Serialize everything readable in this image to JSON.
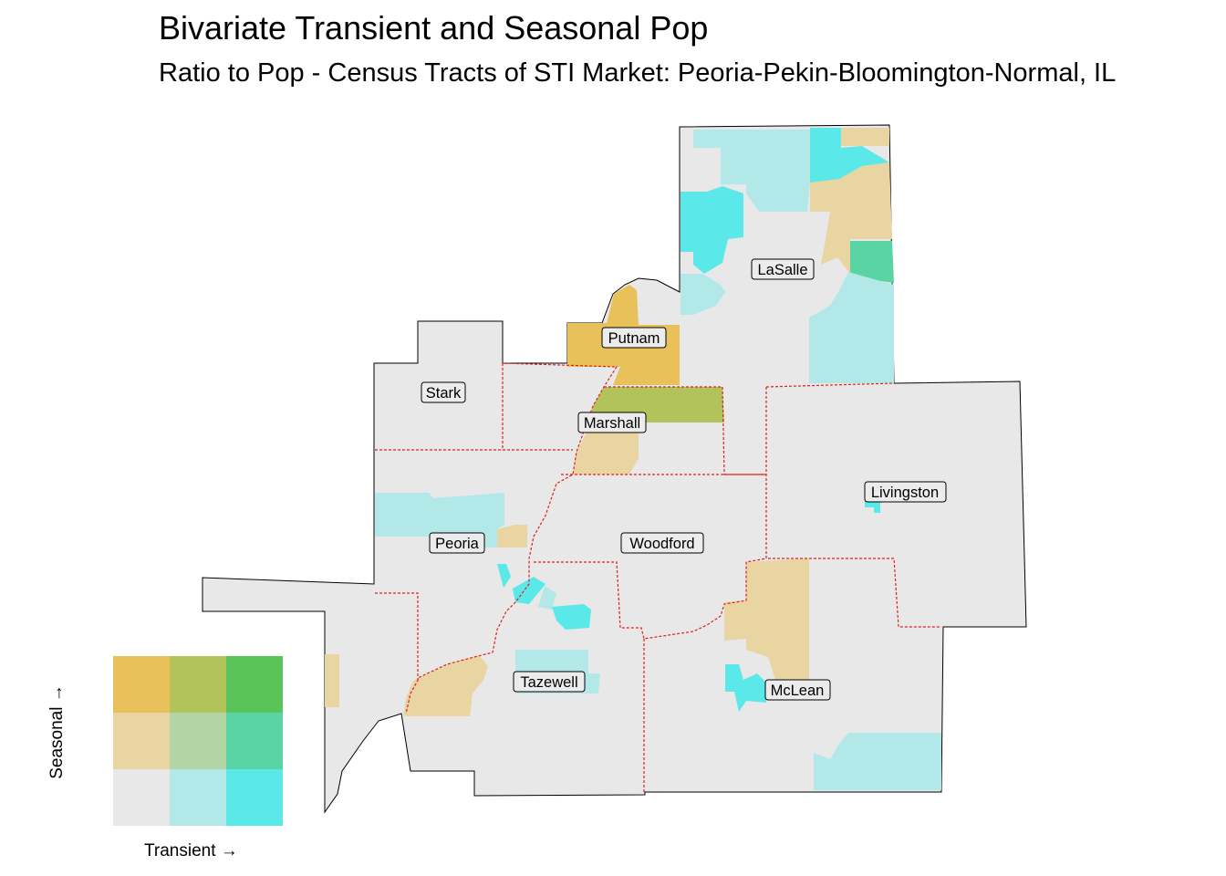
{
  "title": "Bivariate Transient and Seasonal Pop",
  "subtitle": "Ratio to Pop - Census Tracts of STI Market: Peoria-Pekin-Bloomington-Normal, IL",
  "counties": [
    {
      "name": "LaSalle"
    },
    {
      "name": "Putnam"
    },
    {
      "name": "Stark"
    },
    {
      "name": "Marshall"
    },
    {
      "name": "Livingston"
    },
    {
      "name": "Peoria"
    },
    {
      "name": "Woodford"
    },
    {
      "name": "Tazewell"
    },
    {
      "name": "McLean"
    }
  ],
  "legend": {
    "x_label": "Transient →",
    "y_label": "Seasonal →",
    "cells": [
      [
        "#e8c15a",
        "#b3c35b",
        "#5ac35a"
      ],
      [
        "#e8d5a2",
        "#b3d4a4",
        "#5ad4a2"
      ],
      [
        "#e8e8e8",
        "#b3e8e8",
        "#5ae8e8"
      ]
    ]
  },
  "colors": {
    "base": "#e8e8e8",
    "low_seasonal_mid_transient": "#b3e8e8",
    "low_seasonal_high_transient": "#5ae8e8",
    "mid_seasonal_low_transient": "#e8d5a2",
    "mid_seasonal_high_transient": "#5ad4a2",
    "high_seasonal_low_transient": "#e8c15a",
    "high_seasonal_mid_transient": "#b3c35b",
    "county_border": "#e0201e"
  }
}
